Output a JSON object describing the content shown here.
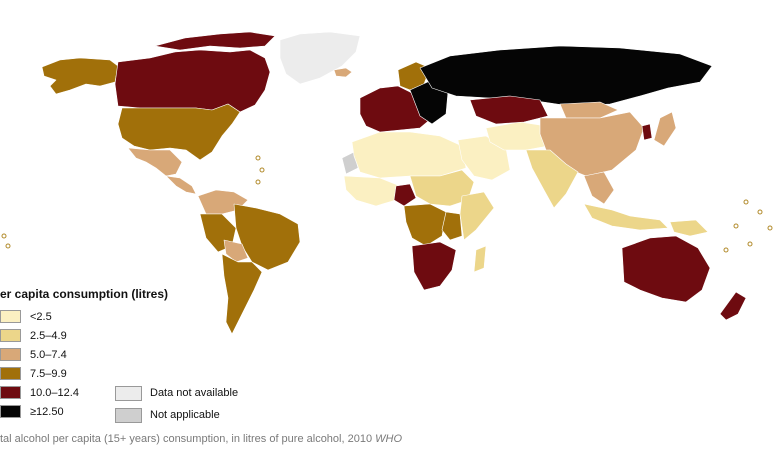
{
  "legend": {
    "title": "er capita consumption (litres)",
    "items": [
      {
        "key": "lt2_5",
        "label": "<2.5",
        "color": "#fbf0c2"
      },
      {
        "key": "r2_5",
        "label": "2.5–4.9",
        "color": "#ecd68a"
      },
      {
        "key": "r5_0",
        "label": "5.0–7.4",
        "color": "#d8a878"
      },
      {
        "key": "r7_5",
        "label": "7.5–9.9",
        "color": "#a1700a"
      },
      {
        "key": "r10",
        "label": "10.0–12.4",
        "color": "#6e0b10"
      },
      {
        "key": "ge12_5",
        "label": "≥12.50",
        "color": "#050505"
      }
    ],
    "extra": [
      {
        "key": "na",
        "label": "Data not available",
        "color": "#ececec"
      },
      {
        "key": "notap",
        "label": "Not applicable",
        "color": "#cfcfcf"
      }
    ]
  },
  "caption": {
    "text": "tal alcohol per capita (15+ years) consumption, in litres of pure alcohol, 2010 ",
    "source": "WHO"
  },
  "regions": [
    {
      "name": "Alaska",
      "class": "r7_5"
    },
    {
      "name": "Canada",
      "class": "r10"
    },
    {
      "name": "Greenland",
      "class": "na"
    },
    {
      "name": "Iceland",
      "class": "r5_0"
    },
    {
      "name": "United States",
      "class": "r7_5"
    },
    {
      "name": "Mexico",
      "class": "r5_0"
    },
    {
      "name": "Central America",
      "class": "r5_0"
    },
    {
      "name": "Colombia / Venezuela",
      "class": "r5_0"
    },
    {
      "name": "Brazil",
      "class": "r7_5"
    },
    {
      "name": "Peru",
      "class": "r7_5"
    },
    {
      "name": "Bolivia",
      "class": "r5_0"
    },
    {
      "name": "Argentina / Chile",
      "class": "r7_5"
    },
    {
      "name": "Western Sahara",
      "class": "notap"
    },
    {
      "name": "North Africa",
      "class": "lt2_5"
    },
    {
      "name": "West Africa",
      "class": "lt2_5"
    },
    {
      "name": "Nigeria",
      "class": "r10"
    },
    {
      "name": "Central Africa",
      "class": "r2_5"
    },
    {
      "name": "Congo",
      "class": "r7_5"
    },
    {
      "name": "Uganda",
      "class": "r7_5"
    },
    {
      "name": "East Africa",
      "class": "r2_5"
    },
    {
      "name": "Southern Africa",
      "class": "r10"
    },
    {
      "name": "Madagascar",
      "class": "r2_5"
    },
    {
      "name": "Arabian Peninsula",
      "class": "lt2_5"
    },
    {
      "name": "Iran / Afghanistan",
      "class": "lt2_5"
    },
    {
      "name": "Western Europe",
      "class": "r10"
    },
    {
      "name": "Scandinavia",
      "class": "r7_5"
    },
    {
      "name": "Eastern Europe",
      "class": "ge12_5"
    },
    {
      "name": "Russia",
      "class": "ge12_5"
    },
    {
      "name": "Kazakhstan",
      "class": "r10"
    },
    {
      "name": "China",
      "class": "r5_0"
    },
    {
      "name": "Mongolia",
      "class": "r5_0"
    },
    {
      "name": "India",
      "class": "r2_5"
    },
    {
      "name": "Southeast Asia",
      "class": "r5_0"
    },
    {
      "name": "Indonesia",
      "class": "r2_5"
    },
    {
      "name": "Japan",
      "class": "r5_0"
    },
    {
      "name": "South Korea",
      "class": "r10"
    },
    {
      "name": "Australia",
      "class": "r10"
    },
    {
      "name": "New Zealand",
      "class": "r10"
    },
    {
      "name": "Papua New Guinea",
      "class": "r2_5"
    },
    {
      "name": "Pacific Islands",
      "class": "lt2_5"
    }
  ]
}
